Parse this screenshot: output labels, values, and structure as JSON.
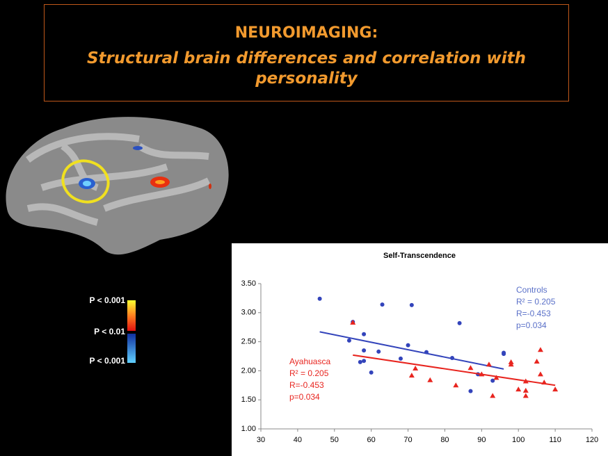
{
  "header": {
    "title": "NEUROIMAGING:",
    "subtitle": "Structural brain differences and correlation with personality"
  },
  "colorbar": {
    "labels": [
      "P < 0.001",
      "P < 0.01",
      "P < 0.001"
    ]
  },
  "chart_data": {
    "type": "scatter",
    "title": "Self-Transcendence",
    "xlim": [
      30,
      120
    ],
    "xticks": [
      30,
      40,
      50,
      60,
      70,
      80,
      90,
      100,
      110,
      120
    ],
    "ylim": [
      1,
      3.5
    ],
    "yticks": [
      {
        "value": 1,
        "label": "1.00"
      },
      {
        "value": 1.5,
        "label": "1.50"
      },
      {
        "value": 2,
        "label": "2.00"
      },
      {
        "value": 2.5,
        "label": "2.50"
      },
      {
        "value": 3,
        "label": "3.00"
      },
      {
        "value": 3.5,
        "label": "3.50"
      }
    ],
    "series": [
      {
        "name": "Controls",
        "color": "#3344bb",
        "marker": "circle",
        "x": [
          46,
          54,
          55,
          57,
          58,
          58,
          58,
          60,
          62,
          63,
          68,
          70,
          71,
          75,
          82,
          84,
          87,
          89,
          93,
          96,
          96
        ],
        "values": [
          3.24,
          2.52,
          2.84,
          2.15,
          2.17,
          2.35,
          2.63,
          1.97,
          2.33,
          3.14,
          2.21,
          2.44,
          3.13,
          2.32,
          2.22,
          2.82,
          1.65,
          1.94,
          1.83,
          2.29,
          2.31
        ],
        "trend": {
          "x": [
            46,
            96
          ],
          "y": [
            2.67,
            2.03
          ]
        },
        "annotation": [
          "R² = 0.205",
          "R=-0.453",
          "p=0.034"
        ]
      },
      {
        "name": "Ayahuasca",
        "color": "#e8251f",
        "marker": "triangle",
        "x": [
          55,
          71,
          72,
          76,
          83,
          87,
          90,
          92,
          93,
          94,
          98,
          98,
          100,
          102,
          102,
          102,
          105,
          106,
          106,
          107,
          110
        ],
        "values": [
          2.83,
          1.92,
          2.04,
          1.84,
          1.75,
          2.05,
          1.94,
          2.11,
          1.57,
          1.88,
          2.15,
          2.11,
          1.68,
          1.57,
          1.82,
          1.66,
          2.16,
          2.36,
          1.94,
          1.8,
          1.68
        ],
        "trend": {
          "x": [
            55,
            110
          ],
          "y": [
            2.27,
            1.75
          ]
        },
        "annotation": [
          "R² = 0.205",
          "R=-0.453",
          "p=0.034"
        ]
      }
    ]
  }
}
